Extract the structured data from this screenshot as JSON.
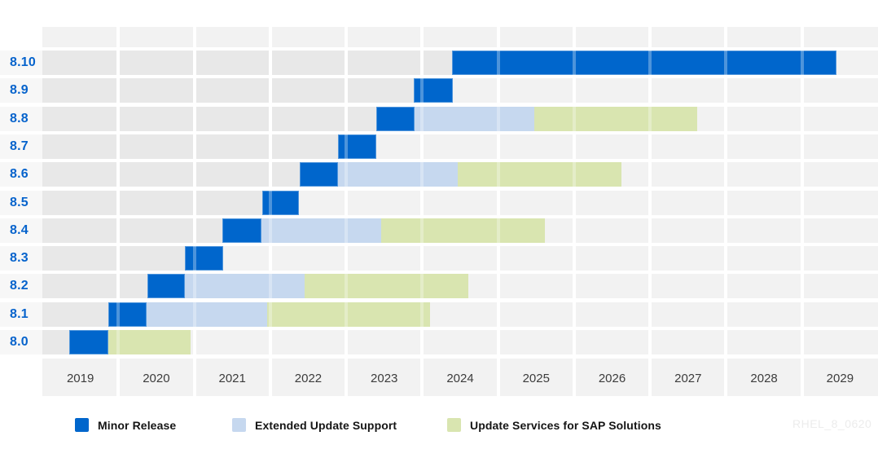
{
  "watermark": "RHEL_8_0620",
  "colors": {
    "minor": "#0066CC",
    "eus": "#C6D8EF",
    "sap": "#D9E5B0",
    "stripe_past": "#E8E8E8",
    "stripe_future": "#F2F2F2",
    "label_cell_bg": "#F7F7F7",
    "row_label_text": "#0663CC",
    "year_label_text": "#3C3C3C",
    "legend_text": "#151515"
  },
  "years": [
    "2019",
    "2020",
    "2021",
    "2022",
    "2023",
    "2024",
    "2025",
    "2026",
    "2027",
    "2028",
    "2029"
  ],
  "legend": [
    {
      "label": "Minor Release",
      "type": "minor"
    },
    {
      "label": "Extended Update Support",
      "type": "eus"
    },
    {
      "label": "Update Services for SAP Solutions",
      "type": "sap"
    }
  ],
  "chart_data": {
    "type": "bar",
    "subtype": "gantt",
    "title": "",
    "xlabel": "",
    "ylabel": "",
    "x_domain": [
      2019,
      2030
    ],
    "x_ticks": [
      2019,
      2020,
      2021,
      2022,
      2023,
      2024,
      2025,
      2026,
      2027,
      2028,
      2029
    ],
    "legend_position": "bottom",
    "grid": "striped-columns",
    "rows": [
      {
        "label": "8.10",
        "segments": [
          {
            "type": "minor",
            "start": 2024.39,
            "end": 2029.45
          }
        ]
      },
      {
        "label": "8.9",
        "segments": [
          {
            "type": "minor",
            "start": 2023.89,
            "end": 2024.4
          }
        ]
      },
      {
        "label": "8.8",
        "segments": [
          {
            "type": "minor",
            "start": 2023.4,
            "end": 2023.9
          },
          {
            "type": "eus",
            "start": 2023.9,
            "end": 2025.48
          },
          {
            "type": "sap",
            "start": 2025.48,
            "end": 2027.62
          }
        ]
      },
      {
        "label": "8.7",
        "segments": [
          {
            "type": "minor",
            "start": 2022.89,
            "end": 2023.4
          }
        ]
      },
      {
        "label": "8.6",
        "segments": [
          {
            "type": "minor",
            "start": 2022.39,
            "end": 2022.89
          },
          {
            "type": "eus",
            "start": 2022.89,
            "end": 2024.47
          },
          {
            "type": "sap",
            "start": 2024.47,
            "end": 2026.62
          }
        ]
      },
      {
        "label": "8.5",
        "segments": [
          {
            "type": "minor",
            "start": 2021.89,
            "end": 2022.38
          }
        ]
      },
      {
        "label": "8.4",
        "segments": [
          {
            "type": "minor",
            "start": 2021.37,
            "end": 2021.88
          },
          {
            "type": "eus",
            "start": 2021.88,
            "end": 2023.46
          },
          {
            "type": "sap",
            "start": 2023.46,
            "end": 2025.61
          }
        ]
      },
      {
        "label": "8.3",
        "segments": [
          {
            "type": "minor",
            "start": 2020.88,
            "end": 2021.38
          }
        ]
      },
      {
        "label": "8.2",
        "segments": [
          {
            "type": "minor",
            "start": 2020.38,
            "end": 2020.88
          },
          {
            "type": "eus",
            "start": 2020.88,
            "end": 2022.45
          },
          {
            "type": "sap",
            "start": 2022.45,
            "end": 2024.61
          }
        ]
      },
      {
        "label": "8.1",
        "segments": [
          {
            "type": "minor",
            "start": 2019.87,
            "end": 2020.37
          },
          {
            "type": "eus",
            "start": 2020.37,
            "end": 2021.96
          },
          {
            "type": "sap",
            "start": 2021.96,
            "end": 2024.1
          }
        ]
      },
      {
        "label": "8.0",
        "segments": [
          {
            "type": "minor",
            "start": 2019.35,
            "end": 2019.87
          },
          {
            "type": "sap",
            "start": 2019.87,
            "end": 2020.95
          }
        ]
      }
    ]
  }
}
